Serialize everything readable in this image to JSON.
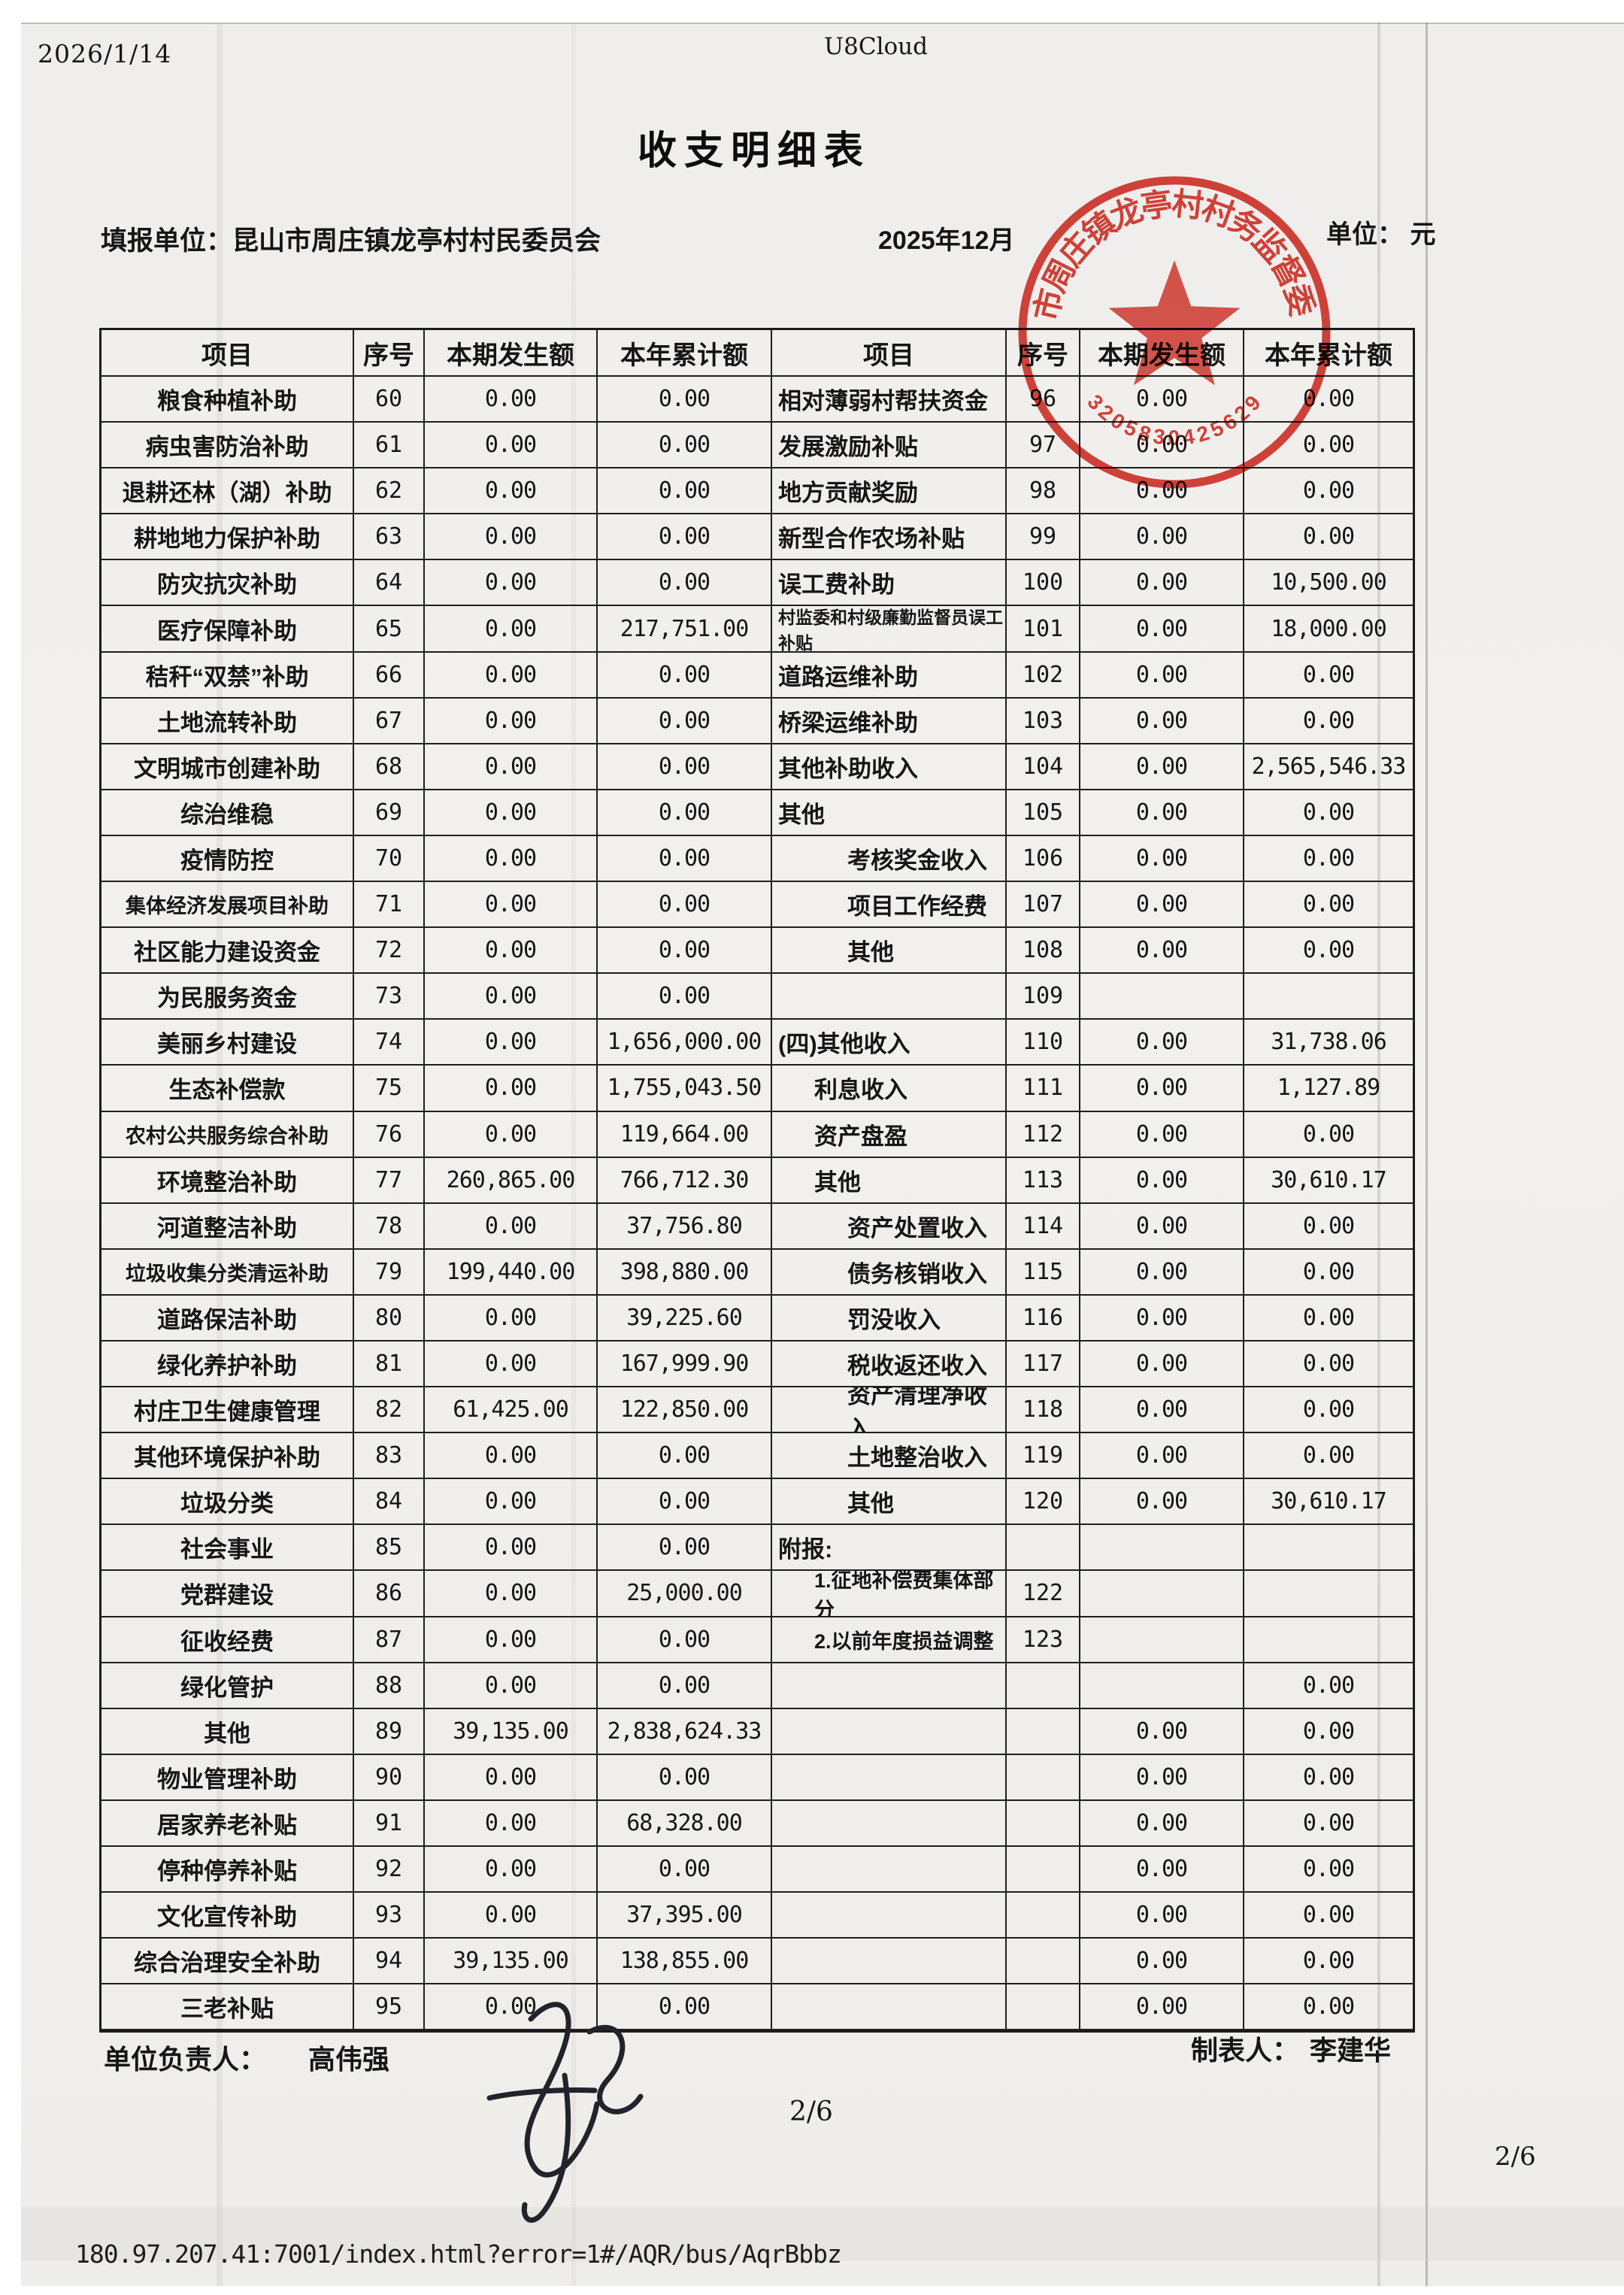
{
  "print_header": {
    "date": "2026/1/14",
    "app": "U8Cloud"
  },
  "document": {
    "title": "收支明细表",
    "report_unit_label": "填报单位：",
    "report_unit": "昆山市周庄镇龙亭村村民委员会",
    "period": "2025年12月",
    "unit_label": "单位：",
    "unit_value": "元",
    "responsible_label": "单位负责人：",
    "responsible_name": "高伟强",
    "preparer_label": "制表人：",
    "preparer_name": "李建华",
    "page_center": "2/6"
  },
  "stamp": {
    "arc_text": "市周庄镇龙亭村村务监督委",
    "number": "3205830425629",
    "color": "#d8352b"
  },
  "table": {
    "headers": [
      "项目",
      "序号",
      "本期发生额",
      "本年累计额"
    ],
    "left_rows": [
      {
        "item": "粮食种植补助",
        "no": "60",
        "cur": "0.00",
        "ytd": "0.00"
      },
      {
        "item": "病虫害防治补助",
        "no": "61",
        "cur": "0.00",
        "ytd": "0.00"
      },
      {
        "item": "退耕还林（湖）补助",
        "no": "62",
        "cur": "0.00",
        "ytd": "0.00"
      },
      {
        "item": "耕地地力保护补助",
        "no": "63",
        "cur": "0.00",
        "ytd": "0.00"
      },
      {
        "item": "防灾抗灾补助",
        "no": "64",
        "cur": "0.00",
        "ytd": "0.00"
      },
      {
        "item": "医疗保障补助",
        "no": "65",
        "cur": "0.00",
        "ytd": "217,751.00"
      },
      {
        "item": "秸秆“双禁”补助",
        "no": "66",
        "cur": "0.00",
        "ytd": "0.00"
      },
      {
        "item": "土地流转补助",
        "no": "67",
        "cur": "0.00",
        "ytd": "0.00"
      },
      {
        "item": "文明城市创建补助",
        "no": "68",
        "cur": "0.00",
        "ytd": "0.00"
      },
      {
        "item": "综治维稳",
        "no": "69",
        "cur": "0.00",
        "ytd": "0.00"
      },
      {
        "item": "疫情防控",
        "no": "70",
        "cur": "0.00",
        "ytd": "0.00"
      },
      {
        "item": "集体经济发展项目补助",
        "no": "71",
        "cur": "0.00",
        "ytd": "0.00"
      },
      {
        "item": "社区能力建设资金",
        "no": "72",
        "cur": "0.00",
        "ytd": "0.00"
      },
      {
        "item": "为民服务资金",
        "no": "73",
        "cur": "0.00",
        "ytd": "0.00"
      },
      {
        "item": "美丽乡村建设",
        "no": "74",
        "cur": "0.00",
        "ytd": "1,656,000.00"
      },
      {
        "item": "生态补偿款",
        "no": "75",
        "cur": "0.00",
        "ytd": "1,755,043.50"
      },
      {
        "item": "农村公共服务综合补助",
        "no": "76",
        "cur": "0.00",
        "ytd": "119,664.00"
      },
      {
        "item": "环境整治补助",
        "no": "77",
        "cur": "260,865.00",
        "ytd": "766,712.30"
      },
      {
        "item": "河道整洁补助",
        "no": "78",
        "cur": "0.00",
        "ytd": "37,756.80"
      },
      {
        "item": "垃圾收集分类清运补助",
        "no": "79",
        "cur": "199,440.00",
        "ytd": "398,880.00"
      },
      {
        "item": "道路保洁补助",
        "no": "80",
        "cur": "0.00",
        "ytd": "39,225.60"
      },
      {
        "item": "绿化养护补助",
        "no": "81",
        "cur": "0.00",
        "ytd": "167,999.90"
      },
      {
        "item": "村庄卫生健康管理",
        "no": "82",
        "cur": "61,425.00",
        "ytd": "122,850.00"
      },
      {
        "item": "其他环境保护补助",
        "no": "83",
        "cur": "0.00",
        "ytd": "0.00"
      },
      {
        "item": "垃圾分类",
        "no": "84",
        "cur": "0.00",
        "ytd": "0.00"
      },
      {
        "item": "社会事业",
        "no": "85",
        "cur": "0.00",
        "ytd": "0.00"
      },
      {
        "item": "党群建设",
        "no": "86",
        "cur": "0.00",
        "ytd": "25,000.00"
      },
      {
        "item": "征收经费",
        "no": "87",
        "cur": "0.00",
        "ytd": "0.00"
      },
      {
        "item": "绿化管护",
        "no": "88",
        "cur": "0.00",
        "ytd": "0.00"
      },
      {
        "item": "其他",
        "no": "89",
        "cur": "39,135.00",
        "ytd": "2,838,624.33"
      },
      {
        "item": "物业管理补助",
        "no": "90",
        "cur": "0.00",
        "ytd": "0.00"
      },
      {
        "item": "居家养老补贴",
        "no": "91",
        "cur": "0.00",
        "ytd": "68,328.00"
      },
      {
        "item": "停种停养补贴",
        "no": "92",
        "cur": "0.00",
        "ytd": "0.00"
      },
      {
        "item": "文化宣传补助",
        "no": "93",
        "cur": "0.00",
        "ytd": "37,395.00"
      },
      {
        "item": "综合治理安全补助",
        "no": "94",
        "cur": "39,135.00",
        "ytd": "138,855.00"
      },
      {
        "item": "三老补贴",
        "no": "95",
        "cur": "0.00",
        "ytd": "0.00"
      }
    ],
    "right_rows": [
      {
        "item": "相对薄弱村帮扶资金",
        "no": "96",
        "cur": "0.00",
        "ytd": "0.00",
        "indent": 0
      },
      {
        "item": "发展激励补贴",
        "no": "97",
        "cur": "0.00",
        "ytd": "0.00",
        "indent": 0
      },
      {
        "item": "地方贡献奖励",
        "no": "98",
        "cur": "0.00",
        "ytd": "0.00",
        "indent": 0
      },
      {
        "item": "新型合作农场补贴",
        "no": "99",
        "cur": "0.00",
        "ytd": "0.00",
        "indent": 0
      },
      {
        "item": "误工费补助",
        "no": "100",
        "cur": "0.00",
        "ytd": "10,500.00",
        "indent": 0
      },
      {
        "item": "村监委和村级廉勤监督员误工补贴",
        "no": "101",
        "cur": "0.00",
        "ytd": "18,000.00",
        "indent": 0
      },
      {
        "item": "道路运维补助",
        "no": "102",
        "cur": "0.00",
        "ytd": "0.00",
        "indent": 0
      },
      {
        "item": "桥梁运维补助",
        "no": "103",
        "cur": "0.00",
        "ytd": "0.00",
        "indent": 0
      },
      {
        "item": "其他补助收入",
        "no": "104",
        "cur": "0.00",
        "ytd": "2,565,546.33",
        "indent": 0
      },
      {
        "item": "其他",
        "no": "105",
        "cur": "0.00",
        "ytd": "0.00",
        "indent": 0
      },
      {
        "item": "考核奖金收入",
        "no": "106",
        "cur": "0.00",
        "ytd": "0.00",
        "indent": 2
      },
      {
        "item": "项目工作经费",
        "no": "107",
        "cur": "0.00",
        "ytd": "0.00",
        "indent": 2
      },
      {
        "item": "其他",
        "no": "108",
        "cur": "0.00",
        "ytd": "0.00",
        "indent": 2
      },
      {
        "item": "",
        "no": "109",
        "cur": "",
        "ytd": "",
        "indent": 0
      },
      {
        "item": "(四)其他收入",
        "no": "110",
        "cur": "0.00",
        "ytd": "31,738.06",
        "indent": 0
      },
      {
        "item": "利息收入",
        "no": "111",
        "cur": "0.00",
        "ytd": "1,127.89",
        "indent": 1
      },
      {
        "item": "资产盘盈",
        "no": "112",
        "cur": "0.00",
        "ytd": "0.00",
        "indent": 1
      },
      {
        "item": "其他",
        "no": "113",
        "cur": "0.00",
        "ytd": "30,610.17",
        "indent": 1
      },
      {
        "item": "资产处置收入",
        "no": "114",
        "cur": "0.00",
        "ytd": "0.00",
        "indent": 2
      },
      {
        "item": "债务核销收入",
        "no": "115",
        "cur": "0.00",
        "ytd": "0.00",
        "indent": 2
      },
      {
        "item": "罚没收入",
        "no": "116",
        "cur": "0.00",
        "ytd": "0.00",
        "indent": 2
      },
      {
        "item": "税收返还收入",
        "no": "117",
        "cur": "0.00",
        "ytd": "0.00",
        "indent": 2
      },
      {
        "item": "资产清理净收入",
        "no": "118",
        "cur": "0.00",
        "ytd": "0.00",
        "indent": 2
      },
      {
        "item": "土地整治收入",
        "no": "119",
        "cur": "0.00",
        "ytd": "0.00",
        "indent": 2
      },
      {
        "item": "其他",
        "no": "120",
        "cur": "0.00",
        "ytd": "30,610.17",
        "indent": 2
      },
      {
        "item": "附报:",
        "no": "",
        "cur": "",
        "ytd": "",
        "indent": 0
      },
      {
        "item": "1.征地补偿费集体部分",
        "no": "122",
        "cur": "",
        "ytd": "",
        "indent": 1
      },
      {
        "item": "2.以前年度损益调整",
        "no": "123",
        "cur": "",
        "ytd": "",
        "indent": 1
      },
      {
        "item": "",
        "no": "",
        "cur": "",
        "ytd": "0.00",
        "indent": 0
      },
      {
        "item": "",
        "no": "",
        "cur": "0.00",
        "ytd": "0.00",
        "indent": 0
      },
      {
        "item": "",
        "no": "",
        "cur": "0.00",
        "ytd": "0.00",
        "indent": 0
      },
      {
        "item": "",
        "no": "",
        "cur": "0.00",
        "ytd": "0.00",
        "indent": 0
      },
      {
        "item": "",
        "no": "",
        "cur": "0.00",
        "ytd": "0.00",
        "indent": 0
      },
      {
        "item": "",
        "no": "",
        "cur": "0.00",
        "ytd": "0.00",
        "indent": 0
      },
      {
        "item": "",
        "no": "",
        "cur": "0.00",
        "ytd": "0.00",
        "indent": 0
      },
      {
        "item": "",
        "no": "",
        "cur": "0.00",
        "ytd": "0.00",
        "indent": 0
      }
    ]
  },
  "footer": {
    "url": "180.97.207.41:7001/index.html?error=1#/AQR/bus/AqrBbbz",
    "page": "2/6"
  }
}
